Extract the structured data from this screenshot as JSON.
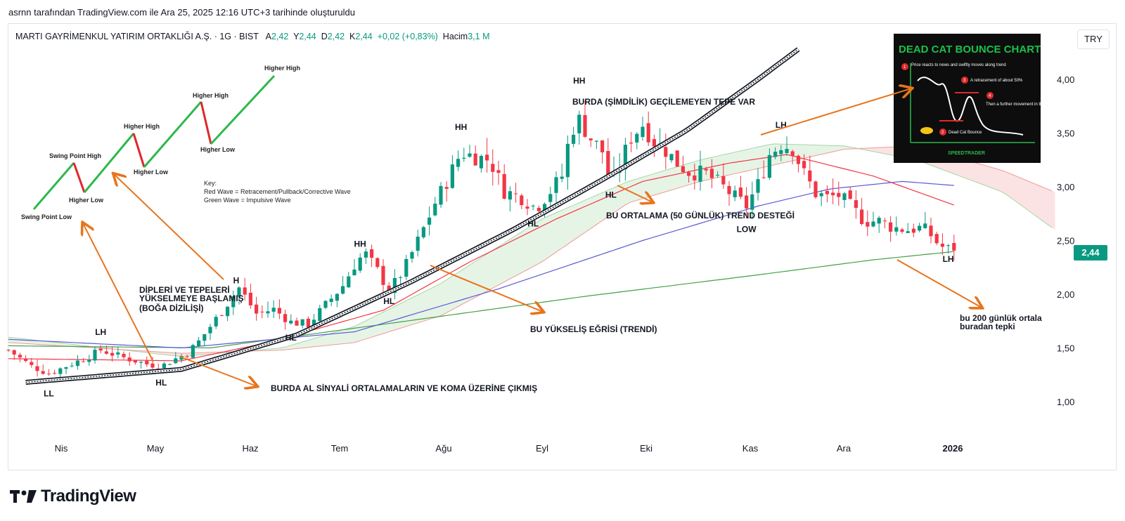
{
  "caption": "asrnn tarafından TradingView.com ile Ara 25, 2025 12:16 UTC+3 tarihinde oluşturuldu",
  "legend": {
    "symbol": "MARTI GAYRİMENKUL YATIRIM ORTAKLIĞI A.Ş. · 1G · BIST",
    "open_label": "A",
    "open": "2,42",
    "high_label": "Y",
    "high": "2,44",
    "low_label": "D",
    "low": "2,42",
    "close_label": "K",
    "close": "2,44",
    "change": "+0,02 (+0,83%)",
    "volume_label": "Hacim",
    "volume": "3,1 M"
  },
  "currency": "TRY",
  "last_price": "2,44",
  "logo_text": "TradingView",
  "colors": {
    "up": "#089981",
    "down": "#f23645",
    "ma50": "#f23645",
    "ma100": "#5b5bd6",
    "ma200": "#43a047",
    "arrow": "#e8741c",
    "cloud_green": "#e6f4e6",
    "cloud_red": "#fbe3e3"
  },
  "chart_data": {
    "type": "candlestick",
    "y_axis": {
      "ticks": [
        "1,00",
        "1,50",
        "2,00",
        "2,50",
        "3,00",
        "3,50",
        "4,00"
      ],
      "values": [
        1.0,
        1.5,
        2.0,
        2.5,
        3.0,
        3.5,
        4.0
      ],
      "range": [
        0.7,
        4.1
      ]
    },
    "x_axis": {
      "ticks": [
        "Nis",
        "May",
        "Haz",
        "Tem",
        "Ağu",
        "Eyl",
        "Eki",
        "Kas",
        "Ara",
        "2026"
      ]
    },
    "anchors": [
      {
        "d": 0,
        "c": 1.48
      },
      {
        "d": 8,
        "c": 1.33
      },
      {
        "d": 14,
        "c": 1.26
      },
      {
        "d": 20,
        "c": 1.33
      },
      {
        "d": 28,
        "c": 1.42
      },
      {
        "d": 32,
        "c": 1.48
      },
      {
        "d": 40,
        "c": 1.41
      },
      {
        "d": 48,
        "c": 1.35
      },
      {
        "d": 53,
        "c": 1.33
      },
      {
        "d": 58,
        "c": 1.4
      },
      {
        "d": 62,
        "c": 1.45
      },
      {
        "d": 66,
        "c": 1.56
      },
      {
        "d": 72,
        "c": 1.77
      },
      {
        "d": 77,
        "c": 1.95
      },
      {
        "d": 80,
        "c": 2.06
      },
      {
        "d": 86,
        "c": 1.82
      },
      {
        "d": 92,
        "c": 1.86
      },
      {
        "d": 98,
        "c": 1.74
      },
      {
        "d": 104,
        "c": 1.72
      },
      {
        "d": 110,
        "c": 1.9
      },
      {
        "d": 116,
        "c": 2.08
      },
      {
        "d": 121,
        "c": 2.32
      },
      {
        "d": 124,
        "c": 2.37
      },
      {
        "d": 128,
        "c": 2.22
      },
      {
        "d": 132,
        "c": 2.03
      },
      {
        "d": 137,
        "c": 2.22
      },
      {
        "d": 143,
        "c": 2.55
      },
      {
        "d": 148,
        "c": 2.85
      },
      {
        "d": 152,
        "c": 3.05
      },
      {
        "d": 157,
        "c": 3.32
      },
      {
        "d": 162,
        "c": 3.28
      },
      {
        "d": 167,
        "c": 3.25
      },
      {
        "d": 172,
        "c": 2.96
      },
      {
        "d": 178,
        "c": 2.9
      },
      {
        "d": 183,
        "c": 2.8
      },
      {
        "d": 188,
        "c": 2.96
      },
      {
        "d": 192,
        "c": 3.1
      },
      {
        "d": 195,
        "c": 3.52
      },
      {
        "d": 198,
        "c": 3.62
      },
      {
        "d": 202,
        "c": 3.45
      },
      {
        "d": 206,
        "c": 3.33
      },
      {
        "d": 209,
        "c": 3.0
      },
      {
        "d": 212,
        "c": 3.2
      },
      {
        "d": 216,
        "c": 3.46
      },
      {
        "d": 220,
        "c": 3.58
      },
      {
        "d": 224,
        "c": 3.42
      },
      {
        "d": 228,
        "c": 3.34
      },
      {
        "d": 232,
        "c": 3.22
      },
      {
        "d": 236,
        "c": 3.14
      },
      {
        "d": 242,
        "c": 3.12
      },
      {
        "d": 247,
        "c": 3.02
      },
      {
        "d": 252,
        "c": 2.9
      },
      {
        "d": 256,
        "c": 2.82
      },
      {
        "d": 260,
        "c": 3.02
      },
      {
        "d": 264,
        "c": 3.3
      },
      {
        "d": 268,
        "c": 3.4
      },
      {
        "d": 272,
        "c": 3.36
      },
      {
        "d": 276,
        "c": 3.12
      },
      {
        "d": 280,
        "c": 2.94
      },
      {
        "d": 284,
        "c": 2.9
      },
      {
        "d": 288,
        "c": 2.92
      },
      {
        "d": 292,
        "c": 2.82
      },
      {
        "d": 297,
        "c": 2.68
      },
      {
        "d": 302,
        "c": 2.68
      },
      {
        "d": 307,
        "c": 2.62
      },
      {
        "d": 312,
        "c": 2.6
      },
      {
        "d": 317,
        "c": 2.62
      },
      {
        "d": 320,
        "c": 2.55
      },
      {
        "d": 323,
        "c": 2.45
      },
      {
        "d": 326,
        "c": 2.42
      },
      {
        "d": 329,
        "c": 2.44
      }
    ],
    "ma50": [
      {
        "d": 0,
        "v": 1.4
      },
      {
        "d": 60,
        "v": 1.38
      },
      {
        "d": 90,
        "v": 1.55
      },
      {
        "d": 130,
        "v": 1.85
      },
      {
        "d": 160,
        "v": 2.3
      },
      {
        "d": 190,
        "v": 2.7
      },
      {
        "d": 220,
        "v": 3.05
      },
      {
        "d": 250,
        "v": 3.22
      },
      {
        "d": 270,
        "v": 3.3
      },
      {
        "d": 300,
        "v": 3.1
      },
      {
        "d": 329,
        "v": 2.82
      }
    ],
    "ma100": [
      {
        "d": 0,
        "v": 1.58
      },
      {
        "d": 60,
        "v": 1.5
      },
      {
        "d": 120,
        "v": 1.65
      },
      {
        "d": 170,
        "v": 2.05
      },
      {
        "d": 220,
        "v": 2.5
      },
      {
        "d": 260,
        "v": 2.82
      },
      {
        "d": 285,
        "v": 2.98
      },
      {
        "d": 310,
        "v": 3.05
      },
      {
        "d": 329,
        "v": 3.01
      }
    ],
    "ma200": [
      {
        "d": 0,
        "v": 1.52
      },
      {
        "d": 70,
        "v": 1.5
      },
      {
        "d": 130,
        "v": 1.72
      },
      {
        "d": 200,
        "v": 1.98
      },
      {
        "d": 260,
        "v": 2.18
      },
      {
        "d": 300,
        "v": 2.32
      },
      {
        "d": 329,
        "v": 2.4
      }
    ],
    "cloud": {
      "span_a": [
        {
          "d": 0,
          "v": 1.6
        },
        {
          "d": 60,
          "v": 1.42
        },
        {
          "d": 95,
          "v": 1.5
        },
        {
          "d": 120,
          "v": 1.7
        },
        {
          "d": 150,
          "v": 2.1
        },
        {
          "d": 185,
          "v": 2.7
        },
        {
          "d": 215,
          "v": 3.05
        },
        {
          "d": 240,
          "v": 3.25
        },
        {
          "d": 265,
          "v": 3.4
        },
        {
          "d": 290,
          "v": 3.38
        },
        {
          "d": 315,
          "v": 3.25
        },
        {
          "d": 345,
          "v": 2.95
        },
        {
          "d": 363,
          "v": 2.6
        }
      ],
      "span_b": [
        {
          "d": 0,
          "v": 1.55
        },
        {
          "d": 60,
          "v": 1.45
        },
        {
          "d": 95,
          "v": 1.48
        },
        {
          "d": 120,
          "v": 1.55
        },
        {
          "d": 150,
          "v": 1.8
        },
        {
          "d": 185,
          "v": 2.3
        },
        {
          "d": 215,
          "v": 2.85
        },
        {
          "d": 240,
          "v": 3.05
        },
        {
          "d": 265,
          "v": 3.2
        },
        {
          "d": 290,
          "v": 3.35
        },
        {
          "d": 315,
          "v": 3.38
        },
        {
          "d": 345,
          "v": 3.15
        },
        {
          "d": 363,
          "v": 2.95
        }
      ]
    },
    "trend_curve": [
      {
        "d": 6,
        "v": 1.18
      },
      {
        "d": 60,
        "v": 1.3
      },
      {
        "d": 100,
        "v": 1.62
      },
      {
        "d": 140,
        "v": 2.12
      },
      {
        "d": 175,
        "v": 2.6
      },
      {
        "d": 205,
        "v": 3.05
      },
      {
        "d": 235,
        "v": 3.52
      },
      {
        "d": 260,
        "v": 4.0
      },
      {
        "d": 275,
        "v": 4.3
      }
    ],
    "annotations": [
      {
        "text": "LL",
        "d": 14,
        "v": 1.05
      },
      {
        "text": "LH",
        "d": 32,
        "v": 1.62
      },
      {
        "text": "HL",
        "d": 53,
        "v": 1.15
      },
      {
        "text": "H",
        "d": 79,
        "v": 2.1
      },
      {
        "text": "HL",
        "d": 98,
        "v": 1.57
      },
      {
        "text": "HH",
        "d": 122,
        "v": 2.44
      },
      {
        "text": "HL",
        "d": 132,
        "v": 1.91
      },
      {
        "text": "HH",
        "d": 157,
        "v": 3.53
      },
      {
        "text": "HH",
        "d": 198,
        "v": 3.96
      },
      {
        "text": "HL",
        "d": 182,
        "v": 2.63
      },
      {
        "text": "HL",
        "d": 209,
        "v": 2.9
      },
      {
        "text": "LOW",
        "d": 256,
        "v": 2.58
      },
      {
        "text": "LH",
        "d": 268,
        "v": 3.55
      },
      {
        "text": "LH",
        "d": 326,
        "v": 2.3
      }
    ],
    "notes": [
      "BURDA (ŞİMDİLİK) GEÇİLEMEYEN TEPE VAR",
      "BU ORTALAMA  (50 GÜNLÜK) TREND DESTEĞİ",
      "BU YÜKSELİŞ EĞRİSİ (TRENDİ)",
      "BURDA AL SİNYALİ ORTALAMALARIN VE KOMA ÜZERİNE ÇIKMIŞ",
      "DİPLERİ VE TEPELERİ",
      "YÜKSELMEYE BAŞLAMIŞ",
      "(BOĞA DİZİLİŞİ)",
      "bu 200 günlük ortala",
      "buradan tepki"
    ],
    "wave_diagram": {
      "labels": [
        "Swing Point Low",
        "Swing Point High",
        "Higher Low",
        "Higher High",
        "Higher Low",
        "Higher High",
        "Higher Low",
        "Higher High"
      ],
      "key_lines": [
        "Key:",
        "Red Wave = Retracement/Pullback/Corrective Wave",
        "Green Wave = Impulsive Wave"
      ]
    },
    "inset": {
      "title": "DEAD CAT BOUNCE CHART",
      "step1": "Price reacts to news and swiftly moves along trend",
      "step2": "Dead Cat Bounce",
      "step3": "A retracement of about 50%",
      "step4": "Then a further movement in the direction of the original trend",
      "brand": "SPEEDTRADER",
      "numbers": [
        "1",
        "2",
        "3",
        "4"
      ]
    }
  }
}
